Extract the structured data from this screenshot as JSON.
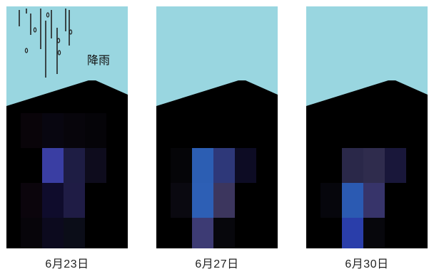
{
  "colors": {
    "sky": "#99d6e0",
    "ground": "#000000",
    "rain": "#222222"
  },
  "rain_label": "降雨",
  "panels": [
    {
      "caption": "6月23日",
      "rain": true,
      "cells": [
        [
          0,
          0,
          "#090409"
        ],
        [
          1,
          0,
          "#080610"
        ],
        [
          2,
          0,
          "#07050b"
        ],
        [
          3,
          0,
          "#050408"
        ],
        [
          1,
          1,
          "#3a3ea3"
        ],
        [
          2,
          1,
          "#1e1d44"
        ],
        [
          3,
          1,
          "#0e0c1d"
        ],
        [
          0,
          2,
          "#0b050c"
        ],
        [
          1,
          2,
          "#0f0c2c"
        ],
        [
          2,
          2,
          "#1f1c45"
        ],
        [
          0,
          3,
          "#07050a"
        ],
        [
          1,
          3,
          "#0c0a1e"
        ],
        [
          2,
          3,
          "#0b0d18"
        ],
        [
          0,
          4,
          "#0f0810"
        ],
        [
          1,
          4,
          "#0a0a14"
        ],
        [
          2,
          4,
          "#08080c"
        ]
      ]
    },
    {
      "caption": "6月27日",
      "rain": false,
      "cells": [
        [
          0,
          1,
          "#050508"
        ],
        [
          1,
          1,
          "#2c5eb3"
        ],
        [
          2,
          1,
          "#2e3879"
        ],
        [
          3,
          1,
          "#0d0c24"
        ],
        [
          0,
          2,
          "#0a0910"
        ],
        [
          1,
          2,
          "#2d5fb5"
        ],
        [
          2,
          2,
          "#3c365e"
        ],
        [
          1,
          3,
          "#3d3b74"
        ],
        [
          2,
          3,
          "#07070c"
        ],
        [
          0,
          4,
          "#0b080f"
        ],
        [
          1,
          4,
          "#1f1d40"
        ],
        [
          2,
          4,
          "#06060a"
        ]
      ]
    },
    {
      "caption": "6月30日",
      "rain": false,
      "cells": [
        [
          1,
          1,
          "#2a2849"
        ],
        [
          2,
          1,
          "#2f2c4d"
        ],
        [
          3,
          1,
          "#19173a"
        ],
        [
          0,
          2,
          "#06060c"
        ],
        [
          1,
          2,
          "#2b5ab2"
        ],
        [
          2,
          2,
          "#37346a"
        ],
        [
          1,
          3,
          "#2a3eaa"
        ],
        [
          2,
          3,
          "#07070c"
        ],
        [
          0,
          4,
          "#090a16"
        ],
        [
          1,
          4,
          "#3a3760"
        ],
        [
          2,
          4,
          "#080c1a"
        ]
      ]
    }
  ]
}
